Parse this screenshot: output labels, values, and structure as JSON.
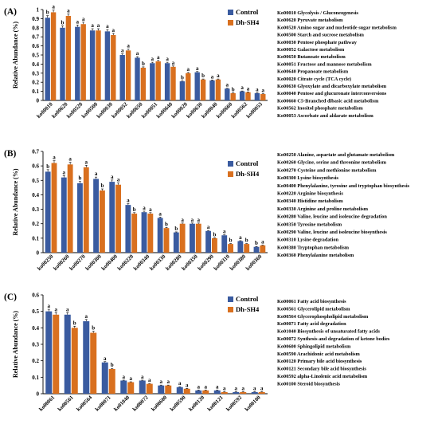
{
  "colors": {
    "control": "#3a5ba0",
    "treat": "#d9701f",
    "axis": "#000000"
  },
  "chart_data": [
    {
      "type": "bar",
      "panel_label": "(A)",
      "ylabel": "Relative Abundance (%)",
      "ylim": [
        0,
        1
      ],
      "yticks": [
        "0",
        "0.1",
        "0.2",
        "0.3",
        "0.4",
        "0.5",
        "0.6",
        "0.7",
        "0.8",
        "0.9",
        "1"
      ],
      "categories": [
        "ko00010",
        "ko00620",
        "ko00520",
        "ko00500",
        "ko00030",
        "ko00052",
        "ko00650",
        "ko00051",
        "ko00640",
        "ko00020",
        "ko00630",
        "ko00040",
        "ko00660",
        "ko00562",
        "ko00053"
      ],
      "series": [
        {
          "name": "Control",
          "values": [
            0.91,
            0.8,
            0.81,
            0.77,
            0.76,
            0.5,
            0.47,
            0.41,
            0.41,
            0.21,
            0.31,
            0.22,
            0.13,
            0.1,
            0.08
          ],
          "letters": [
            "b",
            "b",
            "a",
            "a",
            "a",
            "a",
            "a",
            "a",
            "a",
            "b",
            "a",
            "a",
            "a",
            "a",
            "a"
          ]
        },
        {
          "name": "Dh-SH4",
          "values": [
            0.97,
            0.93,
            0.84,
            0.77,
            0.72,
            0.55,
            0.36,
            0.43,
            0.37,
            0.3,
            0.23,
            0.23,
            0.08,
            0.09,
            0.07
          ],
          "letters": [
            "a",
            "a",
            "a",
            "a",
            "a",
            "a",
            "b",
            "a",
            "a",
            "a",
            "b",
            "a",
            "b",
            "a",
            "a"
          ]
        }
      ],
      "legend_entries": [
        "Ko00010 Glycolysis / Gluconeogenesis",
        "Ko00620 Pyruvate metabolism",
        "Ko00520 Amino sugar and nucleotide sugar metabolism",
        "Ko00500 Starch and sucrose metabolism",
        "Ko00030 Pentose phosphate pathway",
        "Ko00052 Galactose metabolism",
        "Ko00650 Butanoate metabolism",
        "Ko00051 Fructose and mannose metabolism",
        "Ko00640 Propanoate metabolism",
        "Ko00020 Citrate cycle (TCA cycle)",
        "Ko00630 Glyoxylate and dicarboxylate metabolism",
        "Ko00040 Pentose and glucuronate interconversions",
        "Ko00660 C5-Branched dibasic acid metabolism",
        "Ko00562 Inositol phosphate metabolism",
        "Ko00053 Ascorbate and aldarate metabolism"
      ]
    },
    {
      "type": "bar",
      "panel_label": "(B)",
      "ylabel": "Relative Abundance (%)",
      "ylim": [
        0,
        0.7
      ],
      "yticks": [
        "0",
        "0.1",
        "0.2",
        "0.3",
        "0.4",
        "0.5",
        "0.6",
        "0.7"
      ],
      "categories": [
        "ko00250",
        "ko00260",
        "ko00270",
        "ko00300",
        "ko00400",
        "ko00220",
        "ko00340",
        "ko00330",
        "ko00280",
        "ko00350",
        "ko00290",
        "ko00310",
        "ko00380",
        "ko00360"
      ],
      "series": [
        {
          "name": "Control",
          "values": [
            0.56,
            0.52,
            0.48,
            0.51,
            0.49,
            0.33,
            0.28,
            0.24,
            0.14,
            0.2,
            0.15,
            0.12,
            0.08,
            0.04
          ],
          "letters": [
            "b",
            "a",
            "b",
            "a",
            "a",
            "a",
            "a",
            "a",
            "b",
            "a",
            "a",
            "a",
            "a",
            "b"
          ]
        },
        {
          "name": "Dh-SH4",
          "values": [
            0.62,
            0.61,
            0.59,
            0.43,
            0.47,
            0.27,
            0.27,
            0.17,
            0.2,
            0.2,
            0.1,
            0.06,
            0.06,
            0.05
          ],
          "letters": [
            "a",
            "a",
            "a",
            "b",
            "a",
            "b",
            "a",
            "b",
            "a",
            "a",
            "b",
            "b",
            "b",
            "a"
          ]
        }
      ],
      "legend_entries": [
        "Ko00250 Alanine, aspartate and glutamate metabolism",
        "Ko00260 Glycine, serine and threonine metabolism",
        "Ko00270 Cysteine and methionine metabolism",
        "Ko00300 Lysine biosynthesis",
        "Ko00400 Phenylalanine, tyrosine and tryptophan biosynthesis",
        "Ko00220 Arginine biosynthesis",
        "Ko00340 Histidine metabolism",
        "Ko00330 Arginine and proline metabolism",
        "Ko00280 Valine, leucine and isoleucine degradation",
        "Ko00350 Tyrosine metabolism",
        "Ko00290 Valine, leucine and isoleucine biosynthesis",
        "Ko00310 Lysine degradation",
        "Ko00380 Tryptophan metabolism",
        "Ko00360 Phenylalanine metabolism"
      ]
    },
    {
      "type": "bar",
      "panel_label": "(C)",
      "ylabel": "Relative Abundance (%)",
      "ylim": [
        0,
        0.6
      ],
      "yticks": [
        "0",
        "0.1",
        "0.2",
        "0.3",
        "0.4",
        "0.5",
        "0.6"
      ],
      "categories": [
        "ko00061",
        "ko00561",
        "ko00564",
        "ko00071",
        "ko01040",
        "ko00072",
        "ko00600",
        "ko00590",
        "ko00120",
        "ko00121",
        "ko00592",
        "ko00100"
      ],
      "series": [
        {
          "name": "Control",
          "values": [
            0.5,
            0.48,
            0.44,
            0.19,
            0.08,
            0.08,
            0.05,
            0.04,
            0.02,
            0.02,
            0.01,
            0.01
          ],
          "letters": [
            "a",
            "a",
            "a",
            "a",
            "a",
            "a",
            "a",
            "a",
            "a",
            "a",
            "a",
            "a"
          ]
        },
        {
          "name": "Dh-SH4",
          "values": [
            0.48,
            0.4,
            0.37,
            0.15,
            0.07,
            0.06,
            0.05,
            0.03,
            0.02,
            0.01,
            0.01,
            0.01
          ],
          "letters": [
            "a",
            "b",
            "b",
            "b",
            "a",
            "a",
            "a",
            "a",
            "a",
            "a",
            "a",
            "a"
          ]
        }
      ],
      "legend_entries": [
        "Ko00061 Fatty acid biosynthesis",
        "Ko00561 Glycerolipid metabolism",
        "Ko00564 Glycerophospholipid metabolism",
        "Ko00071 Fatty acid degradation",
        "Ko01040 Biosynthesis of unsaturated fatty acids",
        "Ko00072 Synthesis and degradation of ketone bodies",
        "Ko00600 Sphingolipid metabolism",
        "Ko00590 Arachidonic acid metabolism",
        "Ko00120 Primary bile acid biosynthesis",
        "Ko00121 Secondary bile acid biosynthesis",
        "Ko00592 alpha-Linolenic acid metabolism",
        "Ko00100 Steroid biosynthesis"
      ]
    }
  ]
}
